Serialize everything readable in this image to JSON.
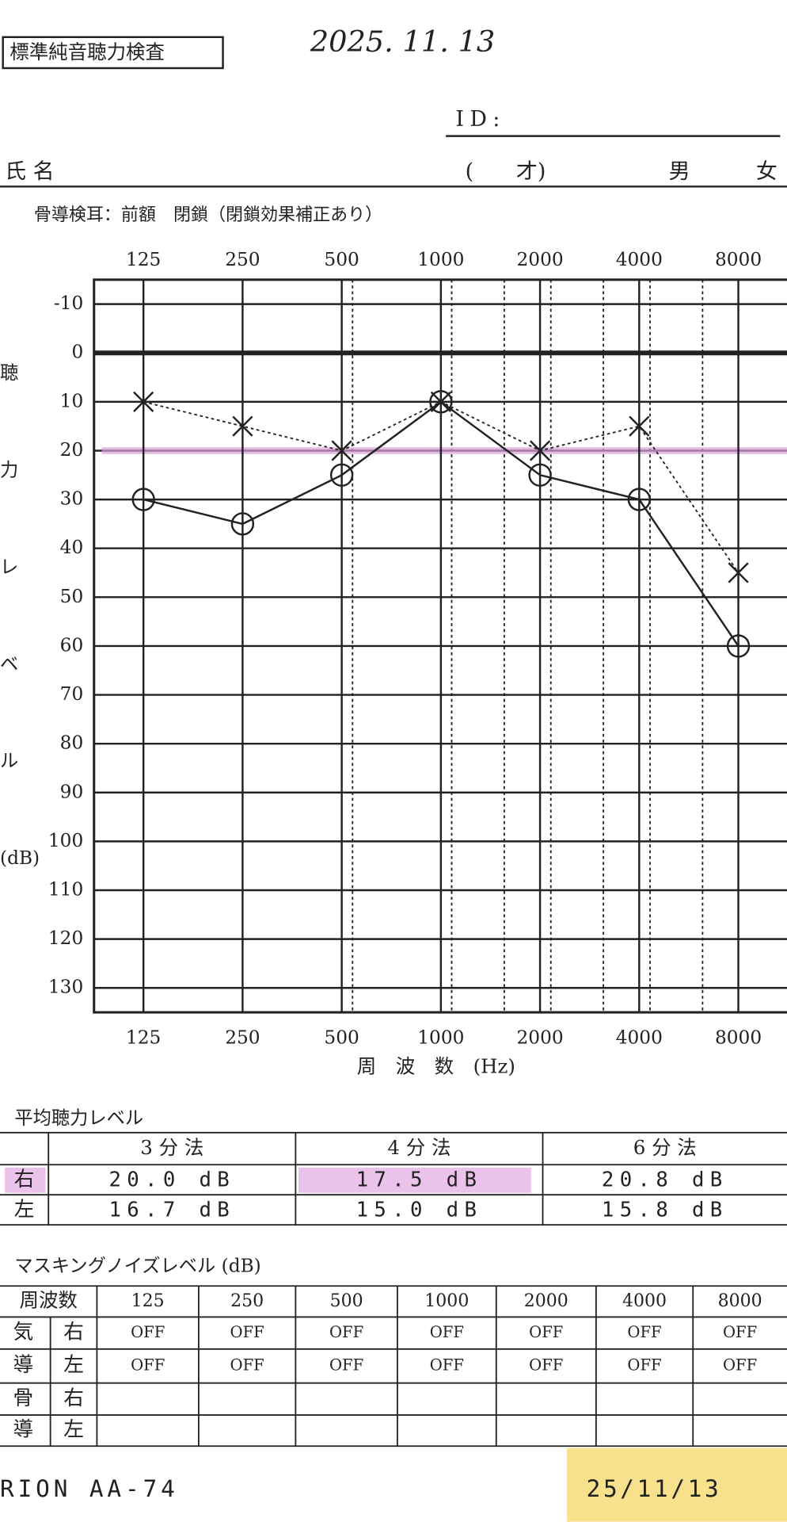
{
  "header": {
    "title": "標準純音聴力検査",
    "date": "2025. 11. 13",
    "id_label": "ID:",
    "name_label": "氏 名",
    "age": "(　　才)",
    "male": "男",
    "female": "女"
  },
  "chart_data": {
    "type": "line",
    "subtitle": "骨導検耳：前額　閉鎖（閉鎖効果補正あり）",
    "y_label": [
      "聴",
      "力",
      "レ",
      "ベ",
      "ル",
      "(dB)"
    ],
    "x_label": "周　波　数　(Hz)",
    "categories": [
      "125",
      "250",
      "500",
      "1000",
      "2000",
      "4000",
      "8000"
    ],
    "series": [
      {
        "marker": "x",
        "color": "#222",
        "dashed": true,
        "values": [
          10,
          15,
          20,
          10,
          20,
          15,
          45
        ]
      },
      {
        "marker": "o",
        "color": "#222",
        "dashed": false,
        "values": [
          30,
          35,
          25,
          10,
          25,
          30,
          60
        ]
      }
    ],
    "ylim": [
      -15,
      135
    ],
    "yticks": [
      -10,
      0,
      10,
      20,
      30,
      40,
      50,
      60,
      70,
      80,
      90,
      100,
      110,
      120,
      130
    ],
    "grid": true,
    "highlight": 20
  },
  "average": {
    "title": "平均聴力レベル",
    "headers": [
      "3 分 法",
      "4 分 法",
      "6 分 法"
    ],
    "rows": [
      [
        "右",
        "20.0 dB",
        "17.5 dB",
        "20.8 dB"
      ],
      [
        "左",
        "16.7 dB",
        "15.0 dB",
        "15.8 dB"
      ]
    ]
  },
  "masking": {
    "title": "マスキングノイズレベル (dB)",
    "corner": "周波数",
    "frequencies": [
      "125",
      "250",
      "500",
      "1000",
      "2000",
      "4000",
      "8000"
    ],
    "groups": [
      {
        "label": [
          "気",
          "導"
        ],
        "rows": [
          {
            "side": "右",
            "values": [
              "OFF",
              "OFF",
              "OFF",
              "OFF",
              "OFF",
              "OFF",
              "OFF"
            ]
          },
          {
            "side": "左",
            "values": [
              "OFF",
              "OFF",
              "OFF",
              "OFF",
              "OFF",
              "OFF",
              "OFF"
            ]
          }
        ]
      },
      {
        "label": [
          "骨",
          "導"
        ],
        "rows": [
          {
            "side": "右",
            "values": []
          },
          {
            "side": "左",
            "values": []
          }
        ]
      }
    ]
  },
  "footer": {
    "model": "RION AA-74",
    "stamp": "25/11/13"
  }
}
